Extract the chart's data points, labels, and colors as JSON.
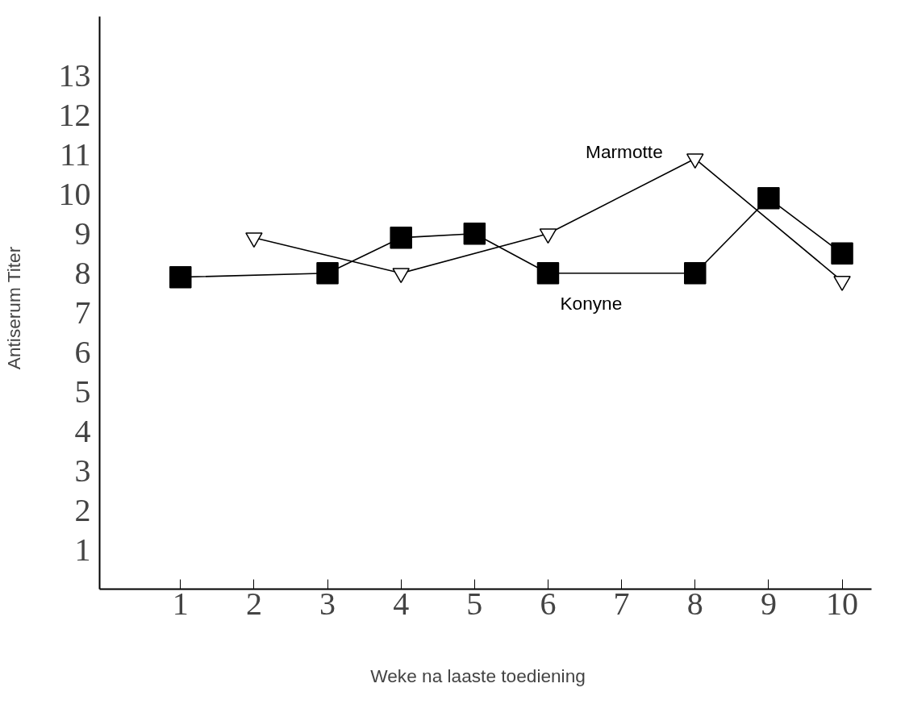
{
  "chart_data": {
    "type": "line",
    "xlabel": "Weke  na  laaste  toediening",
    "ylabel": "Antiserum   Titer",
    "categories": [
      "1",
      "2",
      "3",
      "4",
      "5",
      "6",
      "7",
      "8",
      "9",
      "10"
    ],
    "ylim": [
      0,
      14.5
    ],
    "yticks": [
      1,
      2,
      3,
      4,
      5,
      6,
      7,
      8,
      9,
      10,
      11,
      12,
      13
    ],
    "grid": false,
    "legend": false,
    "series": [
      {
        "name": "Marmotte",
        "color": "#000000",
        "marker": "triangle",
        "values": [
          null,
          8.9,
          null,
          8,
          null,
          9,
          null,
          10.9,
          null,
          7.8
        ]
      },
      {
        "name": "Konyne",
        "color": "#000000",
        "marker": "square",
        "values": [
          7.9,
          null,
          8,
          8.9,
          9,
          8,
          null,
          8,
          9.9,
          8.5
        ]
      }
    ]
  }
}
